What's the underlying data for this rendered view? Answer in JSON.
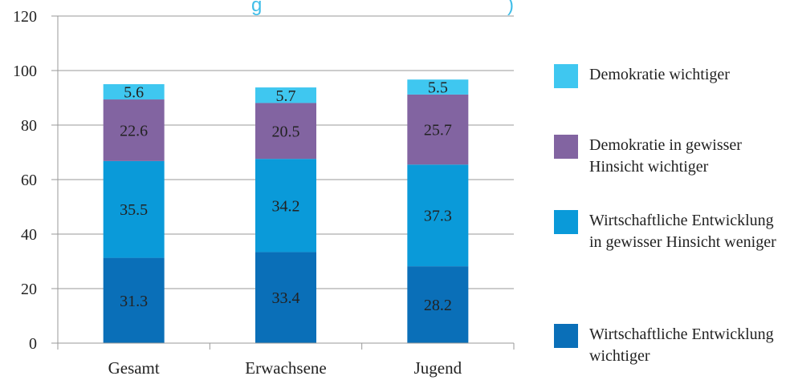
{
  "chart_data": {
    "type": "bar",
    "stacked": true,
    "title_fragment": "g",
    "title_fragment_tail": ")",
    "categories": [
      "Gesamt",
      "Erwachsene",
      "Jugend"
    ],
    "ylim": [
      0,
      120
    ],
    "yticks": [
      "0",
      "20",
      "40",
      "60",
      "80",
      "100",
      "120"
    ],
    "grid": true,
    "legend_position": "right",
    "series": [
      {
        "name": "Wirtschaftliche Entwicklung wichtiger",
        "color": "#0a6fb8",
        "values": [
          31.3,
          33.4,
          28.2
        ],
        "labels": [
          "31.3",
          "33.4",
          "28.2"
        ]
      },
      {
        "name": "Wirtschaftliche Entwicklung in gewisser Hinsicht weniger",
        "color": "#0a9ad9",
        "values": [
          35.5,
          34.2,
          37.3
        ],
        "labels": [
          "35.5",
          "34.2",
          "37.3"
        ]
      },
      {
        "name": "Demokratie in gewisser Hinsicht wichtiger",
        "color": "#8264a1",
        "values": [
          22.6,
          20.5,
          25.7
        ],
        "labels": [
          "22.6",
          "20.5",
          "25.7"
        ]
      },
      {
        "name": "Demokratie wichtiger",
        "color": "#3fc7f0",
        "values": [
          5.6,
          5.7,
          5.5
        ],
        "labels": [
          "5.6",
          "5.7",
          "5.5"
        ]
      }
    ],
    "legend": [
      "Demokratie wichtiger",
      "Demokratie in gewisser Hinsicht wichtiger",
      "Wirtschaftliche Entwicklung in gewisser Hinsicht weniger",
      "Wirtschaftliche Entwicklung wichtiger"
    ]
  }
}
